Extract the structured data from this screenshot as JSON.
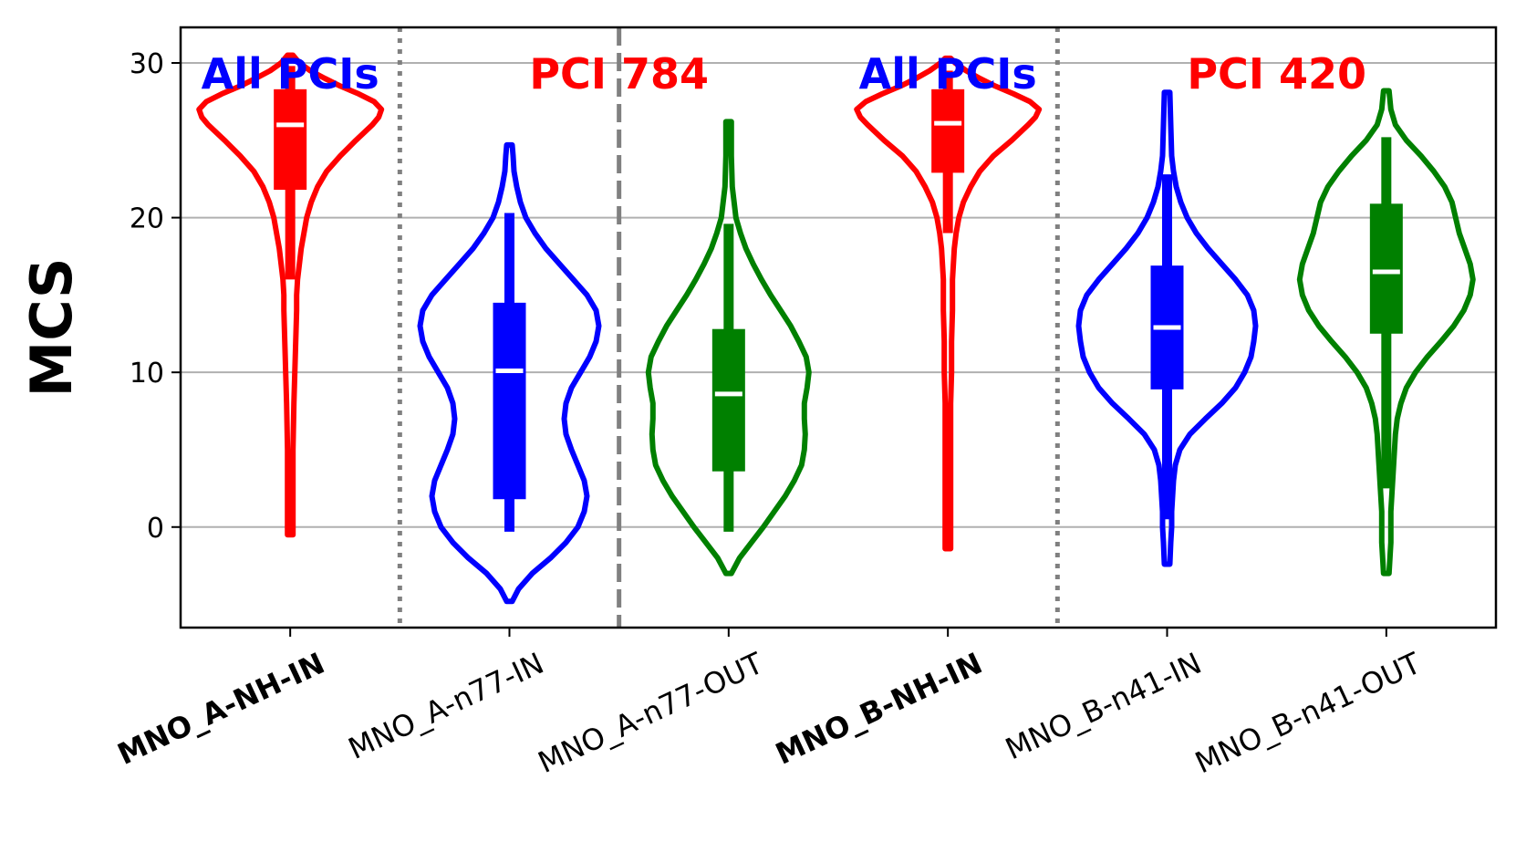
{
  "chart_data": {
    "type": "violin",
    "ylabel": "MCS",
    "xlabel": "",
    "ylim": [
      -6.5,
      32.3
    ],
    "yticks": [
      0,
      10,
      20,
      30
    ],
    "grid": "horizontal",
    "categories": [
      {
        "label": "MNO_A-NH-IN",
        "bold": true,
        "color": "#ff0000",
        "median": 26.0,
        "q1": 21.8,
        "q3": 28.3,
        "whisker_low": 16.0,
        "whisker_high": 29.8,
        "min": -0.5,
        "max": 30.5,
        "profile": [
          [
            -0.5,
            0.03
          ],
          [
            2,
            0.03
          ],
          [
            5,
            0.03
          ],
          [
            8,
            0.04
          ],
          [
            10,
            0.05
          ],
          [
            12,
            0.06
          ],
          [
            14,
            0.07
          ],
          [
            15,
            0.07
          ],
          [
            16,
            0.08
          ],
          [
            17,
            0.1
          ],
          [
            18,
            0.12
          ],
          [
            19,
            0.15
          ],
          [
            20,
            0.18
          ],
          [
            21,
            0.23
          ],
          [
            22,
            0.3
          ],
          [
            23,
            0.4
          ],
          [
            24,
            0.55
          ],
          [
            25,
            0.72
          ],
          [
            26,
            0.9
          ],
          [
            26.5,
            0.97
          ],
          [
            27,
            1.0
          ],
          [
            27.5,
            0.92
          ],
          [
            28,
            0.75
          ],
          [
            28.5,
            0.55
          ],
          [
            29,
            0.38
          ],
          [
            29.5,
            0.22
          ],
          [
            30,
            0.1
          ],
          [
            30.5,
            0.03
          ]
        ]
      },
      {
        "label": "MNO_A-n77-IN",
        "bold": false,
        "color": "#0000ff",
        "median": 10.1,
        "q1": 1.8,
        "q3": 14.5,
        "whisker_low": -0.3,
        "whisker_high": 20.3,
        "min": -4.8,
        "max": 24.7,
        "profile": [
          [
            -4.8,
            0.03
          ],
          [
            -4,
            0.1
          ],
          [
            -3,
            0.25
          ],
          [
            -2,
            0.45
          ],
          [
            -1,
            0.62
          ],
          [
            0,
            0.75
          ],
          [
            1,
            0.82
          ],
          [
            2,
            0.85
          ],
          [
            3,
            0.82
          ],
          [
            4,
            0.75
          ],
          [
            5,
            0.68
          ],
          [
            6,
            0.62
          ],
          [
            7,
            0.6
          ],
          [
            8,
            0.62
          ],
          [
            9,
            0.68
          ],
          [
            10,
            0.78
          ],
          [
            11,
            0.88
          ],
          [
            12,
            0.95
          ],
          [
            13,
            0.98
          ],
          [
            14,
            0.95
          ],
          [
            15,
            0.85
          ],
          [
            16,
            0.7
          ],
          [
            17,
            0.55
          ],
          [
            18,
            0.4
          ],
          [
            19,
            0.28
          ],
          [
            20,
            0.18
          ],
          [
            21,
            0.12
          ],
          [
            22,
            0.08
          ],
          [
            23,
            0.05
          ],
          [
            24,
            0.04
          ],
          [
            24.7,
            0.03
          ]
        ]
      },
      {
        "label": "MNO_A-n77-OUT",
        "bold": false,
        "color": "#008000",
        "median": 8.6,
        "q1": 3.6,
        "q3": 12.8,
        "whisker_low": -0.3,
        "whisker_high": 19.6,
        "min": -3.0,
        "max": 26.2,
        "profile": [
          [
            -3,
            0.03
          ],
          [
            -2,
            0.12
          ],
          [
            -1,
            0.25
          ],
          [
            0,
            0.38
          ],
          [
            1,
            0.5
          ],
          [
            2,
            0.62
          ],
          [
            3,
            0.72
          ],
          [
            4,
            0.8
          ],
          [
            5,
            0.83
          ],
          [
            6,
            0.84
          ],
          [
            7,
            0.83
          ],
          [
            8,
            0.83
          ],
          [
            9,
            0.86
          ],
          [
            10,
            0.88
          ],
          [
            11,
            0.85
          ],
          [
            12,
            0.77
          ],
          [
            13,
            0.68
          ],
          [
            14,
            0.57
          ],
          [
            15,
            0.46
          ],
          [
            16,
            0.36
          ],
          [
            17,
            0.27
          ],
          [
            18,
            0.19
          ],
          [
            19,
            0.13
          ],
          [
            20,
            0.08
          ],
          [
            21,
            0.06
          ],
          [
            22,
            0.04
          ],
          [
            24,
            0.03
          ],
          [
            26.2,
            0.03
          ]
        ]
      },
      {
        "label": "MNO_B-NH-IN",
        "bold": true,
        "color": "#ff0000",
        "median": 26.1,
        "q1": 22.9,
        "q3": 28.3,
        "whisker_low": 19.0,
        "whisker_high": 29.5,
        "min": -1.4,
        "max": 30.3,
        "profile": [
          [
            -1.4,
            0.03
          ],
          [
            2,
            0.03
          ],
          [
            5,
            0.03
          ],
          [
            8,
            0.03
          ],
          [
            10,
            0.04
          ],
          [
            12,
            0.04
          ],
          [
            14,
            0.05
          ],
          [
            16,
            0.05
          ],
          [
            17,
            0.06
          ],
          [
            18,
            0.07
          ],
          [
            19,
            0.09
          ],
          [
            20,
            0.12
          ],
          [
            21,
            0.17
          ],
          [
            22,
            0.25
          ],
          [
            23,
            0.35
          ],
          [
            24,
            0.5
          ],
          [
            25,
            0.7
          ],
          [
            26,
            0.88
          ],
          [
            26.5,
            0.96
          ],
          [
            27,
            1.0
          ],
          [
            27.5,
            0.9
          ],
          [
            28,
            0.72
          ],
          [
            28.5,
            0.52
          ],
          [
            29,
            0.35
          ],
          [
            29.5,
            0.2
          ],
          [
            30,
            0.08
          ],
          [
            30.3,
            0.03
          ]
        ]
      },
      {
        "label": "MNO_B-n41-IN",
        "bold": false,
        "color": "#0000ff",
        "median": 12.9,
        "q1": 8.9,
        "q3": 16.9,
        "whisker_low": 0.5,
        "whisker_high": 22.8,
        "min": -2.4,
        "max": 28.1,
        "profile": [
          [
            -2.4,
            0.03
          ],
          [
            -1,
            0.04
          ],
          [
            0,
            0.05
          ],
          [
            1,
            0.05
          ],
          [
            2,
            0.06
          ],
          [
            3,
            0.07
          ],
          [
            4,
            0.09
          ],
          [
            5,
            0.14
          ],
          [
            6,
            0.25
          ],
          [
            7,
            0.42
          ],
          [
            8,
            0.6
          ],
          [
            9,
            0.75
          ],
          [
            10,
            0.85
          ],
          [
            11,
            0.92
          ],
          [
            12,
            0.95
          ],
          [
            13,
            0.97
          ],
          [
            14,
            0.95
          ],
          [
            15,
            0.88
          ],
          [
            16,
            0.75
          ],
          [
            17,
            0.6
          ],
          [
            18,
            0.45
          ],
          [
            19,
            0.32
          ],
          [
            20,
            0.22
          ],
          [
            21,
            0.15
          ],
          [
            22,
            0.1
          ],
          [
            23,
            0.07
          ],
          [
            24,
            0.05
          ],
          [
            26,
            0.04
          ],
          [
            28.1,
            0.03
          ]
        ]
      },
      {
        "label": "MNO_B-n41-OUT",
        "bold": false,
        "color": "#008000",
        "median": 16.5,
        "q1": 12.5,
        "q3": 20.9,
        "whisker_low": 2.5,
        "whisker_high": 25.2,
        "min": -3.0,
        "max": 28.2,
        "profile": [
          [
            -3,
            0.03
          ],
          [
            -2,
            0.04
          ],
          [
            -1,
            0.05
          ],
          [
            0,
            0.05
          ],
          [
            1,
            0.05
          ],
          [
            2,
            0.06
          ],
          [
            3,
            0.07
          ],
          [
            4,
            0.08
          ],
          [
            5,
            0.09
          ],
          [
            6,
            0.1
          ],
          [
            7,
            0.12
          ],
          [
            8,
            0.16
          ],
          [
            9,
            0.22
          ],
          [
            10,
            0.32
          ],
          [
            11,
            0.45
          ],
          [
            12,
            0.6
          ],
          [
            13,
            0.74
          ],
          [
            14,
            0.85
          ],
          [
            15,
            0.92
          ],
          [
            16,
            0.95
          ],
          [
            17,
            0.92
          ],
          [
            18,
            0.86
          ],
          [
            19,
            0.8
          ],
          [
            20,
            0.76
          ],
          [
            21,
            0.72
          ],
          [
            22,
            0.64
          ],
          [
            23,
            0.52
          ],
          [
            24,
            0.38
          ],
          [
            25,
            0.22
          ],
          [
            26,
            0.1
          ],
          [
            27,
            0.05
          ],
          [
            28.2,
            0.03
          ]
        ]
      }
    ],
    "annotations": [
      {
        "text": "All PCIs",
        "color": "#0000ff",
        "category_span": [
          0,
          0
        ]
      },
      {
        "text": "PCI 784",
        "color": "#ff0000",
        "category_span": [
          1,
          2
        ]
      },
      {
        "text": "All PCIs",
        "color": "#0000ff",
        "category_span": [
          3,
          3
        ]
      },
      {
        "text": "PCI 420",
        "color": "#ff0000",
        "category_span": [
          4,
          5
        ]
      }
    ],
    "separators": [
      {
        "after_category": 0,
        "style": "dotted"
      },
      {
        "after_category": 1,
        "style": "dashed"
      },
      {
        "after_category": 3,
        "style": "dotted"
      }
    ]
  }
}
